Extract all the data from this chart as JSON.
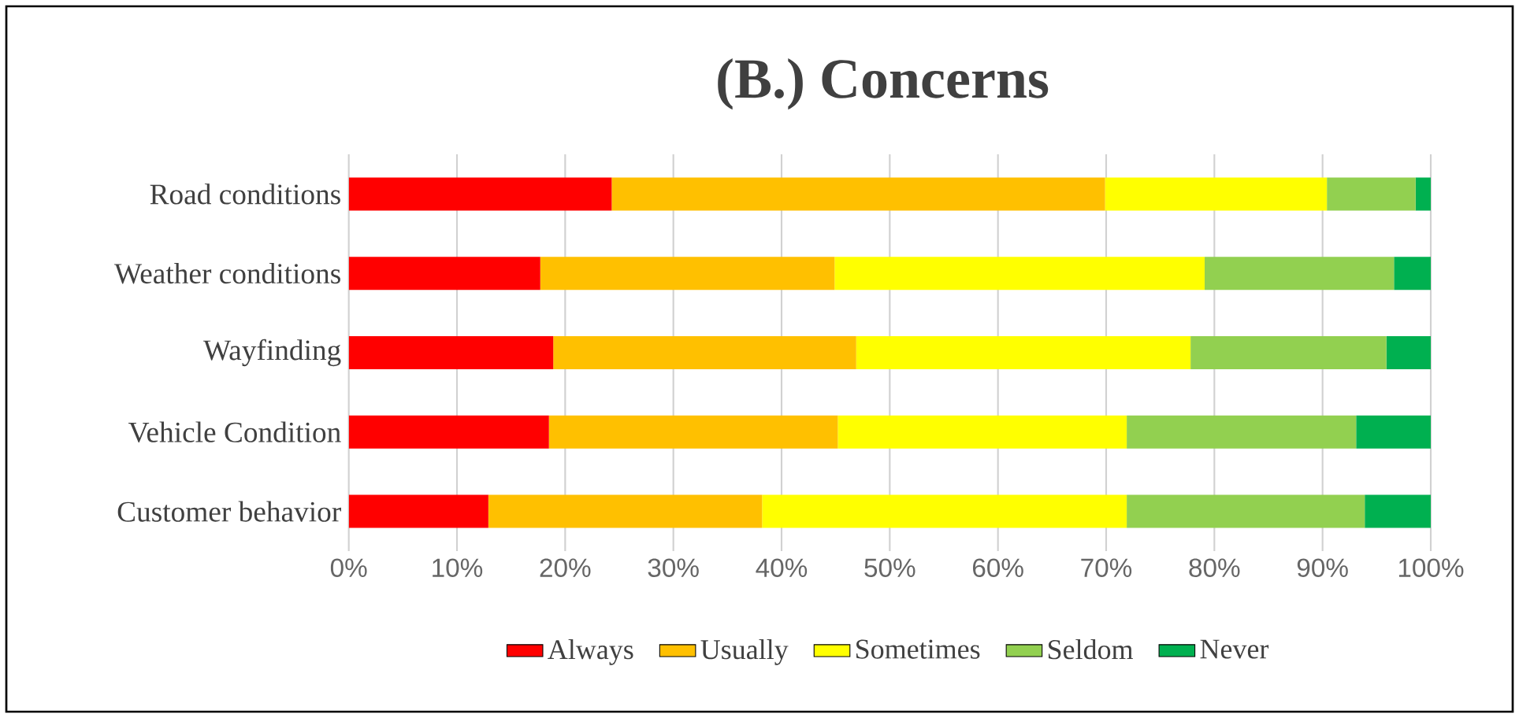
{
  "chart_data": {
    "type": "bar",
    "title": "(B.) Concerns",
    "orientation": "horizontal",
    "stacked": true,
    "categories": [
      "Road conditions",
      "Weather conditions",
      "Wayfinding",
      "Vehicle Condition",
      "Customer behavior"
    ],
    "series": [
      {
        "name": "Always",
        "color": "#ff0000",
        "values": [
          24.3,
          17.7,
          18.9,
          18.5,
          12.9
        ]
      },
      {
        "name": "Usually",
        "color": "#ffc000",
        "values": [
          45.6,
          27.2,
          28.0,
          26.7,
          25.3
        ]
      },
      {
        "name": "Sometimes",
        "color": "#ffff00",
        "values": [
          20.5,
          34.2,
          30.9,
          26.7,
          33.7
        ]
      },
      {
        "name": "Seldom",
        "color": "#92d050",
        "values": [
          8.2,
          17.5,
          18.1,
          21.2,
          22.0
        ]
      },
      {
        "name": "Never",
        "color": "#00b050",
        "values": [
          1.4,
          3.4,
          4.1,
          6.9,
          6.1
        ]
      }
    ],
    "xlim": [
      0,
      100
    ],
    "xticks": [
      {
        "value": 0,
        "label": "0%"
      },
      {
        "value": 10,
        "label": "10%"
      },
      {
        "value": 20,
        "label": "20%"
      },
      {
        "value": 30,
        "label": "30%"
      },
      {
        "value": 40,
        "label": "40%"
      },
      {
        "value": 50,
        "label": "50%"
      },
      {
        "value": 60,
        "label": "60%"
      },
      {
        "value": 70,
        "label": "70%"
      },
      {
        "value": 80,
        "label": "80%"
      },
      {
        "value": 90,
        "label": "90%"
      },
      {
        "value": 100,
        "label": "100%"
      }
    ],
    "grid": "x",
    "legend": "bottom"
  }
}
